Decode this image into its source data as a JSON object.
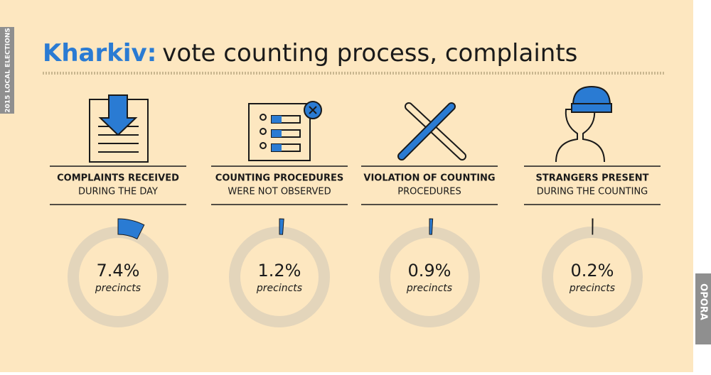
{
  "header": {
    "title_place": "Kharkiv:",
    "title_rest": "vote counting process, complaints"
  },
  "side_label": "2015 LOCAL ELECTIONS",
  "logo": "OPORA",
  "chart_data": [
    {
      "type": "donut",
      "title": "COMPLAINTS RECEIVED",
      "subtitle": "DURING THE DAY",
      "values": [
        7.4
      ],
      "value_labels": [
        "7.4%"
      ],
      "unit": "precincts",
      "color": "#2a7bd3"
    },
    {
      "type": "donut",
      "title": "COUNTING PROCEDURES",
      "subtitle": "WERE NOT OBSERVED",
      "values": [
        1.2
      ],
      "value_labels": [
        "1.2%"
      ],
      "unit": "precincts",
      "color": "#2a7bd3"
    },
    {
      "type": "donut",
      "title": "VIOLATION OF COUNTING",
      "subtitle": "PROCEDURES",
      "values": [
        0.9
      ],
      "value_labels": [
        "0.9%"
      ],
      "unit": "precincts",
      "color": "#2a7bd3"
    },
    {
      "type": "donut",
      "title": "STRANGERS PRESENT",
      "subtitle": "DURING THE COUNTING",
      "values": [
        0.2
      ],
      "value_labels": [
        "0.2%"
      ],
      "unit": "precincts",
      "color": "#1a1a1a"
    }
  ]
}
